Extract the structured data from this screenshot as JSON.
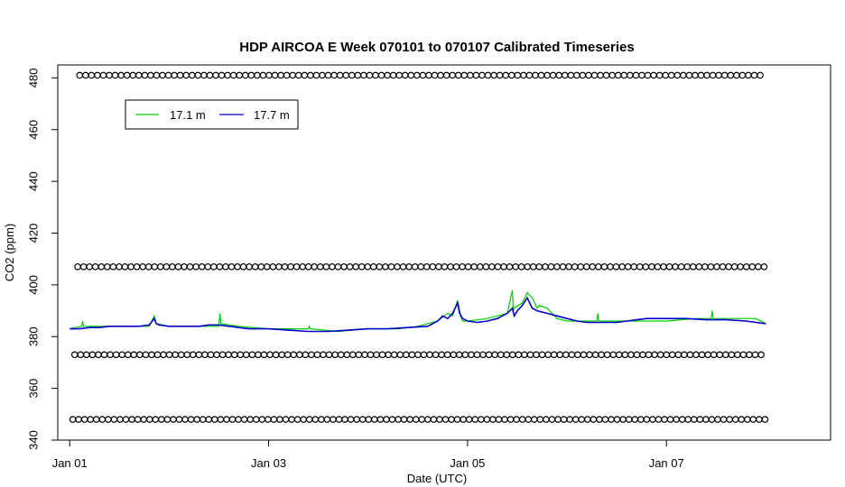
{
  "chart_data": {
    "type": "line",
    "title": "HDP AIRCOA E  Week 070101 to 070107  Calibrated Timeseries",
    "xlabel": "Date (UTC)",
    "ylabel": "CO2 (ppm)",
    "ylim": [
      340,
      485
    ],
    "xlim": [
      -0.12,
      7.65
    ],
    "x_ticks": [
      {
        "value": 0,
        "label": "Jan 01"
      },
      {
        "value": 2,
        "label": "Jan 03"
      },
      {
        "value": 4,
        "label": "Jan 05"
      },
      {
        "value": 6,
        "label": "Jan 07"
      }
    ],
    "y_ticks": [
      340,
      360,
      380,
      400,
      420,
      440,
      460,
      480
    ],
    "legend": {
      "position": "top-left",
      "colors": [
        "#00cc00",
        "#0000cc"
      ]
    },
    "series": [
      {
        "name": "17.1 m",
        "color": "#00cc00",
        "x": [
          0,
          0.12,
          0.13,
          0.14,
          0.3,
          0.5,
          0.8,
          0.85,
          0.87,
          1.0,
          1.2,
          1.5,
          1.51,
          1.52,
          1.7,
          2.0,
          2.3,
          2.4,
          2.41,
          2.42,
          2.7,
          3.0,
          3.3,
          3.5,
          3.7,
          3.8,
          3.85,
          3.9,
          3.93,
          3.95,
          4.0,
          4.2,
          4.4,
          4.45,
          4.46,
          4.47,
          4.55,
          4.6,
          4.65,
          4.7,
          4.72,
          4.8,
          4.9,
          5.0,
          5.1,
          5.2,
          5.3,
          5.31,
          5.32,
          5.5,
          5.7,
          6.0,
          6.3,
          6.45,
          6.46,
          6.47,
          6.6,
          6.9,
          7.0
        ],
        "y": [
          383,
          384,
          386,
          384,
          384,
          384,
          384,
          388,
          385,
          384,
          384,
          384,
          389,
          385,
          384,
          383,
          383,
          383,
          384,
          383,
          382,
          383,
          383,
          384,
          386,
          389,
          388,
          394,
          388,
          386,
          386,
          387,
          389,
          398,
          390,
          391,
          393,
          397,
          395,
          391,
          392,
          391,
          387,
          386,
          386,
          386,
          386,
          389,
          386,
          386,
          386,
          386,
          387,
          387,
          390,
          387,
          387,
          387,
          385
        ]
      },
      {
        "name": "17.7 m",
        "color": "#0000cc",
        "x": [
          0,
          0.1,
          0.2,
          0.3,
          0.4,
          0.5,
          0.6,
          0.7,
          0.8,
          0.85,
          0.87,
          0.9,
          1.0,
          1.1,
          1.2,
          1.3,
          1.4,
          1.5,
          1.6,
          1.7,
          1.8,
          1.9,
          2.0,
          2.2,
          2.4,
          2.6,
          2.8,
          3.0,
          3.2,
          3.4,
          3.6,
          3.7,
          3.75,
          3.8,
          3.85,
          3.9,
          3.92,
          3.95,
          4.0,
          4.1,
          4.2,
          4.3,
          4.4,
          4.45,
          4.47,
          4.5,
          4.55,
          4.6,
          4.65,
          4.7,
          4.8,
          4.9,
          5.0,
          5.1,
          5.2,
          5.3,
          5.4,
          5.5,
          5.6,
          5.7,
          5.8,
          5.9,
          6.0,
          6.2,
          6.4,
          6.6,
          6.8,
          7.0
        ],
        "y": [
          383,
          383,
          383.5,
          383.5,
          384,
          384,
          384,
          384,
          384.5,
          387,
          385,
          384.5,
          384,
          384,
          384,
          384,
          384.5,
          384.5,
          384,
          383.5,
          383,
          383,
          383,
          382.5,
          382,
          382,
          382.5,
          383,
          383,
          383.5,
          384,
          386,
          388,
          387,
          389,
          393,
          389,
          387,
          386,
          385.5,
          386,
          387,
          389,
          391,
          388,
          390,
          392,
          395,
          391,
          390,
          389,
          388,
          387,
          386,
          385.5,
          385.5,
          385.5,
          385.5,
          386,
          386.5,
          387,
          387,
          387,
          387,
          386.5,
          386.5,
          386,
          385
        ]
      }
    ],
    "marker_rows": [
      {
        "y": 481,
        "x_start": 0.1,
        "x_end": 7.0
      },
      {
        "y": 407,
        "x_start": 0.08,
        "x_end": 7.0
      },
      {
        "y": 373,
        "x_start": 0.05,
        "x_end": 7.0
      },
      {
        "y": 348,
        "x_start": 0.03,
        "x_end": 7.0
      }
    ]
  }
}
